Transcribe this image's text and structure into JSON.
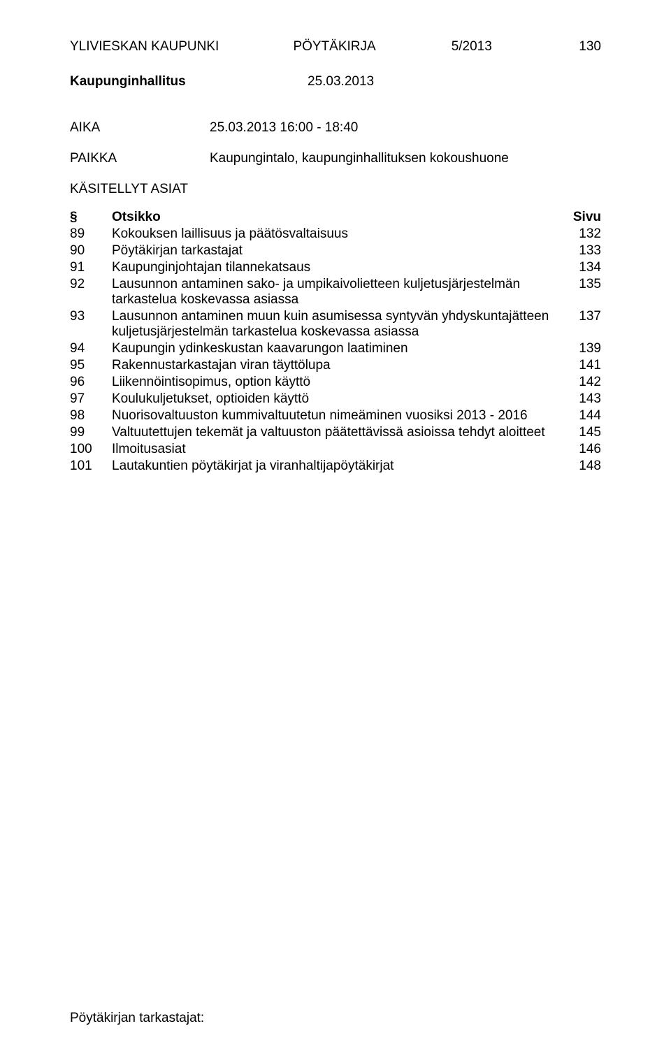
{
  "header": {
    "org": "YLIVIESKAN  KAUPUNKI",
    "doc_type": "PÖYTÄKIRJA",
    "doc_number": "5/2013",
    "page_number": "130"
  },
  "subheader": {
    "body": "Kaupunginhallitus",
    "date": "25.03.2013"
  },
  "meta": {
    "time_label": "AIKA",
    "time_value": "25.03.2013 16:00 - 18:40",
    "place_label": "PAIKKA",
    "place_value": "Kaupungintalo, kaupunginhallituksen kokoushuone"
  },
  "agenda": {
    "section_title": "KÄSITELLYT ASIAT",
    "col_section": "§",
    "col_title": "Otsikko",
    "col_page": "Sivu",
    "items": [
      {
        "num": "89",
        "title": "Kokouksen laillisuus ja päätösvaltaisuus",
        "page": "132"
      },
      {
        "num": "90",
        "title": "Pöytäkirjan tarkastajat",
        "page": "133"
      },
      {
        "num": "91",
        "title": "Kaupunginjohtajan tilannekatsaus",
        "page": "134"
      },
      {
        "num": "92",
        "title": "Lausunnon antaminen sako- ja umpikaivolietteen kuljetusjärjestelmän tarkastelua koskevassa asiassa",
        "page": "135"
      },
      {
        "num": "93",
        "title": "Lausunnon antaminen muun kuin asumisessa syntyvän yhdyskuntajätteen kuljetusjärjestelmän tarkastelua koskevassa asiassa",
        "page": "137"
      },
      {
        "num": "94",
        "title": "Kaupungin ydinkeskustan kaavarungon laatiminen",
        "page": "139"
      },
      {
        "num": "95",
        "title": "Rakennustarkastajan viran täyttölupa",
        "page": "141"
      },
      {
        "num": "96",
        "title": "Liikennöintisopimus, option käyttö",
        "page": "142"
      },
      {
        "num": "97",
        "title": "Koulukuljetukset, optioiden käyttö",
        "page": "143"
      },
      {
        "num": "98",
        "title": "Nuorisovaltuuston kummivaltuutetun nimeäminen vuosiksi 2013 - 2016",
        "page": "144"
      },
      {
        "num": "99",
        "title": "Valtuutettujen tekemät ja valtuuston päätettävissä asioissa tehdyt aloitteet",
        "page": "145"
      },
      {
        "num": "100",
        "title": "Ilmoitusasiat",
        "page": "146"
      },
      {
        "num": "101",
        "title": "Lautakuntien pöytäkirjat ja viranhaltijapöytäkirjat",
        "page": "148"
      }
    ]
  },
  "footer": {
    "text": "Pöytäkirjan tarkastajat:"
  }
}
